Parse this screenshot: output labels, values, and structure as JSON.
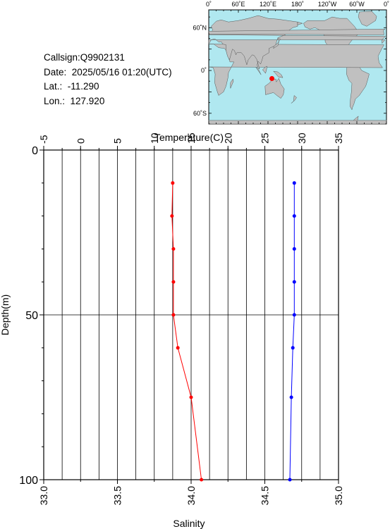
{
  "info": {
    "callsign": "Callsign:Q9902131",
    "date": "Date:  2025/05/16 01:20(UTC)",
    "lat": "Lat.:  -11.290",
    "lon": "Lon.:  127.920"
  },
  "map": {
    "lon_labels": [
      "0˚",
      "60˚E",
      "120˚E",
      "180˚",
      "120˚W",
      "60˚W",
      "0˚"
    ],
    "lat_labels": [
      "60˚N",
      "0˚",
      "60˚S"
    ],
    "marker": {
      "lat": -11.29,
      "lon": 127.92
    },
    "ocean_color": "#b0e8f0",
    "land_color": "#c0c0c0",
    "marker_color": "#ff0000"
  },
  "chart_data": {
    "type": "line",
    "top_axis_label": "Temperature(C)",
    "bottom_axis_label": "Salinity",
    "ylabel": "Depth(m)",
    "temperature_ticks": [
      "-5",
      "0",
      "5",
      "10",
      "15",
      "20",
      "25",
      "30",
      "35"
    ],
    "salinity_ticks": [
      "33.0",
      "33.5",
      "34.0",
      "34.5",
      "35.0"
    ],
    "depth_ticks": [
      "0",
      "50",
      "100"
    ],
    "temperature_range": [
      -5,
      35
    ],
    "salinity_range": [
      33.0,
      35.0
    ],
    "depth_range": [
      0,
      100
    ],
    "series": [
      {
        "axis": "temperature",
        "color": "#ff0000",
        "depth": [
          10,
          20,
          30,
          40,
          50,
          60,
          75,
          100
        ],
        "values": [
          12.5,
          12.4,
          12.6,
          12.6,
          12.6,
          13.2,
          15.0,
          16.4
        ]
      },
      {
        "axis": "salinity",
        "color": "#0000ff",
        "depth": [
          10,
          20,
          30,
          40,
          50,
          60,
          75,
          100
        ],
        "values": [
          34.7,
          34.7,
          34.7,
          34.7,
          34.7,
          34.69,
          34.68,
          34.67
        ]
      }
    ]
  }
}
